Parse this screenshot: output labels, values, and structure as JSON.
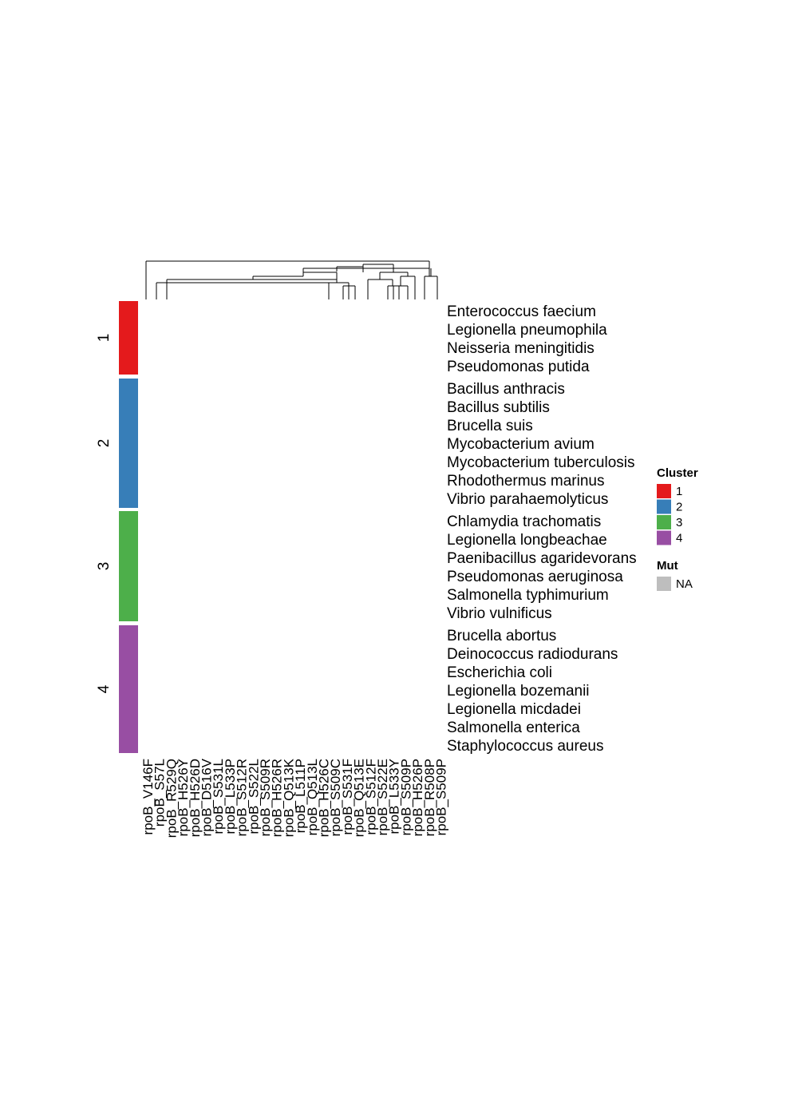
{
  "chart_data": {
    "type": "heatmap",
    "title": "",
    "xlabel": "",
    "ylabel": "",
    "columns": [
      "rpoB_V146F",
      "rpoB_S57L",
      "rpoB_R529Q",
      "rpoB_H526Y",
      "rpoB_H526D",
      "rpoB_D516V",
      "rpoB_S531L",
      "rpoB_L533P",
      "rpoB_S512R",
      "rpoB_S522L",
      "rpoB_S509R",
      "rpoB_H526R",
      "rpoB_Q513K",
      "rpoB_L511P",
      "rpoB_Q513L",
      "rpoB_H526C",
      "rpoB_S509C",
      "rpoB_S531F",
      "rpoB_Q513E",
      "rpoB_S512F",
      "rpoB_S522E",
      "rpoB_L533Y",
      "rpoB_S509P",
      "rpoB_H526P",
      "rpoB_R508P",
      "rpoB_S509P"
    ],
    "row_groups": [
      {
        "cluster": "1",
        "rows": [
          "Enterococcus faecium",
          "Legionella pneumophila",
          "Neisseria meningitidis",
          "Pseudomonas putida"
        ]
      },
      {
        "cluster": "2",
        "rows": [
          "Bacillus anthracis",
          "Bacillus subtilis",
          "Brucella suis",
          "Mycobacterium avium",
          "Mycobacterium tuberculosis",
          "Rhodothermus marinus",
          "Vibrio parahaemolyticus"
        ]
      },
      {
        "cluster": "3",
        "rows": [
          "Chlamydia trachomatis",
          "Legionella longbeachae",
          "Paenibacillus agaridevorans",
          "Pseudomonas aeruginosa",
          "Salmonella typhimurium",
          "Vibrio vulnificus"
        ]
      },
      {
        "cluster": "4",
        "rows": [
          "Brucella abortus",
          "Deinococcus radiodurans",
          "Escherichia coli",
          "Legionella bozemanii",
          "Legionella micdadei",
          "Salmonella enterica",
          "Staphylococcus aureus"
        ]
      }
    ],
    "cell_value": "NA",
    "legend": {
      "placement": "right",
      "cluster": {
        "title": "Cluster",
        "items": [
          {
            "label": "1",
            "color": "#E41A1C"
          },
          {
            "label": "2",
            "color": "#377EB8"
          },
          {
            "label": "3",
            "color": "#4DAF4A"
          },
          {
            "label": "4",
            "color": "#984EA3"
          }
        ]
      },
      "mut": {
        "title": "Mut",
        "items": [
          {
            "label": "NA",
            "color": "#BEBEBE"
          }
        ]
      }
    }
  }
}
